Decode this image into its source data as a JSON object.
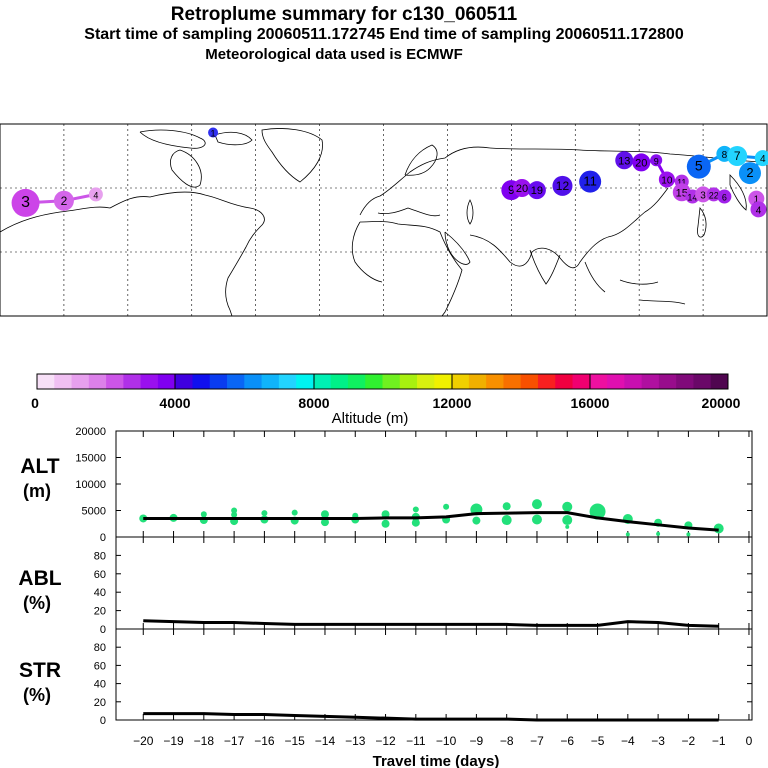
{
  "header": {
    "title": "Retroplume summary for c130_060511",
    "sampling": "Start time of sampling 20060511.172745     End time of sampling 20060511.172800",
    "met": "Meteorological data used is ECMWF"
  },
  "colors": {
    "alt_points": "#22e07a",
    "line": "#000000",
    "scale": [
      "#f7e0f7",
      "#f0c0f2",
      "#e7a0ee",
      "#dc80ea",
      "#cc55e8",
      "#b030e8",
      "#9a10ee",
      "#8000f0",
      "#3f00e0",
      "#1010ee",
      "#0a3cf0",
      "#0a66f5",
      "#0a90f8",
      "#10b4fa",
      "#22d4ff",
      "#00f4f0",
      "#00f0b4",
      "#00f088",
      "#10f060",
      "#30f030",
      "#70f020",
      "#a8f010",
      "#d8f010",
      "#f0f000",
      "#f0d000",
      "#f0b000",
      "#f89000",
      "#f87000",
      "#f85000",
      "#f82020",
      "#f00040",
      "#f00070",
      "#ee10a0",
      "#e010b0",
      "#c810b0",
      "#b010a0",
      "#980c8c",
      "#800a7a",
      "#6a0868",
      "#500650"
    ]
  },
  "map": {
    "clusters": [
      {
        "label": "3",
        "lon": -168,
        "lat": 53,
        "size": 14,
        "color": "#cc44e8"
      },
      {
        "label": "2",
        "lon": -150,
        "lat": 54,
        "size": 10,
        "color": "#d466ea"
      },
      {
        "label": "4",
        "lon": -135,
        "lat": 57,
        "size": 7,
        "color": "#e7a0ee"
      },
      {
        "label": "1",
        "lon": -80,
        "lat": 86,
        "size": 5,
        "color": "#3030f0"
      },
      {
        "label": "9",
        "lon": 60,
        "lat": 59,
        "size": 10,
        "color": "#8000f0"
      },
      {
        "label": "20",
        "lon": 65,
        "lat": 60,
        "size": 9,
        "color": "#9a10ee"
      },
      {
        "label": "19",
        "lon": 72,
        "lat": 59,
        "size": 9,
        "color": "#6a0cf0"
      },
      {
        "label": "12",
        "lon": 84,
        "lat": 61,
        "size": 10,
        "color": "#5010ea"
      },
      {
        "label": "11",
        "lon": 97,
        "lat": 63,
        "size": 11,
        "color": "#2020ea"
      },
      {
        "label": "13",
        "lon": 113,
        "lat": 73,
        "size": 9,
        "color": "#6010ea"
      },
      {
        "label": "20",
        "lon": 121,
        "lat": 72,
        "size": 9,
        "color": "#8000f0"
      },
      {
        "label": "9",
        "lon": 128,
        "lat": 73,
        "size": 6,
        "color": "#8810ee"
      },
      {
        "label": "10",
        "lon": 133,
        "lat": 64,
        "size": 8,
        "color": "#9a10ee"
      },
      {
        "label": "11",
        "lon": 140,
        "lat": 63,
        "size": 7,
        "color": "#b030e8"
      },
      {
        "label": "15",
        "lon": 140,
        "lat": 58,
        "size": 9,
        "color": "#c040e8"
      },
      {
        "label": "14",
        "lon": 145,
        "lat": 56,
        "size": 7,
        "color": "#b030e8"
      },
      {
        "label": "3",
        "lon": 150,
        "lat": 57,
        "size": 8,
        "color": "#cc55e8"
      },
      {
        "label": "22",
        "lon": 155,
        "lat": 57,
        "size": 7,
        "color": "#b030e8"
      },
      {
        "label": "6",
        "lon": 160,
        "lat": 56,
        "size": 7,
        "color": "#a020ea"
      },
      {
        "label": "5",
        "lon": 148,
        "lat": 70,
        "size": 12,
        "color": "#0a66f5"
      },
      {
        "label": "8",
        "lon": 160,
        "lat": 76,
        "size": 8,
        "color": "#10b4fa"
      },
      {
        "label": "7",
        "lon": 166,
        "lat": 75,
        "size": 10,
        "color": "#22d4ff"
      },
      {
        "label": "4",
        "lon": 178,
        "lat": 74,
        "size": 8,
        "color": "#22d4ff"
      },
      {
        "label": "2",
        "lon": 172,
        "lat": 67,
        "size": 11,
        "color": "#0a90f8"
      },
      {
        "label": "1",
        "lon": 175,
        "lat": 55,
        "size": 8,
        "color": "#cc55e8"
      },
      {
        "label": "4",
        "lon": 176,
        "lat": 50,
        "size": 8,
        "color": "#b030e8"
      }
    ]
  },
  "colorbar": {
    "labels": [
      "0",
      "4000",
      "8000",
      "12000",
      "16000",
      "20000"
    ],
    "title": "Altitude (m)"
  },
  "chart_data": [
    {
      "type": "line",
      "title": "ALT (m)",
      "panel_label": "ALT",
      "panel_unit": "(m)",
      "ylim": [
        0,
        20000
      ],
      "yticks": [
        "0",
        "5000",
        "10000",
        "15000",
        "20000"
      ],
      "x": [
        -20,
        -19,
        -18,
        -17,
        -16,
        -15,
        -14,
        -13,
        -12,
        -11,
        -10,
        -9,
        -8,
        -7,
        -6,
        -5,
        -4,
        -3,
        -2,
        -1
      ],
      "values": [
        3500,
        3500,
        3500,
        3500,
        3500,
        3500,
        3500,
        3500,
        3600,
        3600,
        3800,
        4400,
        4500,
        4600,
        4600,
        3600,
        2900,
        2300,
        1700,
        1300
      ],
      "scatter": [
        {
          "x": -20,
          "y": 3500,
          "r": 4
        },
        {
          "x": -19,
          "y": 3600,
          "r": 4
        },
        {
          "x": -18,
          "y": 3200,
          "r": 4
        },
        {
          "x": -18,
          "y": 4300,
          "r": 3
        },
        {
          "x": -17,
          "y": 3000,
          "r": 4
        },
        {
          "x": -17,
          "y": 4200,
          "r": 3
        },
        {
          "x": -17,
          "y": 5000,
          "r": 3
        },
        {
          "x": -16,
          "y": 3300,
          "r": 4
        },
        {
          "x": -16,
          "y": 4500,
          "r": 3
        },
        {
          "x": -15,
          "y": 3100,
          "r": 4
        },
        {
          "x": -15,
          "y": 4600,
          "r": 3
        },
        {
          "x": -14,
          "y": 2800,
          "r": 4
        },
        {
          "x": -14,
          "y": 4300,
          "r": 4
        },
        {
          "x": -13,
          "y": 3300,
          "r": 4
        },
        {
          "x": -13,
          "y": 4000,
          "r": 3
        },
        {
          "x": -12,
          "y": 2500,
          "r": 4
        },
        {
          "x": -12,
          "y": 4300,
          "r": 4
        },
        {
          "x": -11,
          "y": 2700,
          "r": 4
        },
        {
          "x": -11,
          "y": 3800,
          "r": 4
        },
        {
          "x": -11,
          "y": 5200,
          "r": 3
        },
        {
          "x": -10,
          "y": 3300,
          "r": 4
        },
        {
          "x": -10,
          "y": 5700,
          "r": 3
        },
        {
          "x": -9,
          "y": 3100,
          "r": 4
        },
        {
          "x": -9,
          "y": 5200,
          "r": 6
        },
        {
          "x": -8,
          "y": 3200,
          "r": 5
        },
        {
          "x": -8,
          "y": 5800,
          "r": 4
        },
        {
          "x": -7,
          "y": 3300,
          "r": 5
        },
        {
          "x": -7,
          "y": 6200,
          "r": 5
        },
        {
          "x": -6,
          "y": 1900,
          "r": 2
        },
        {
          "x": -6,
          "y": 3200,
          "r": 5
        },
        {
          "x": -6,
          "y": 5700,
          "r": 5
        },
        {
          "x": -5,
          "y": 4800,
          "r": 8
        },
        {
          "x": -4,
          "y": 500,
          "r": 2
        },
        {
          "x": -4,
          "y": 3400,
          "r": 5
        },
        {
          "x": -3,
          "y": 600,
          "r": 2
        },
        {
          "x": -3,
          "y": 2700,
          "r": 4
        },
        {
          "x": -2,
          "y": 500,
          "r": 2
        },
        {
          "x": -2,
          "y": 2200,
          "r": 4
        },
        {
          "x": -1,
          "y": 1600,
          "r": 5
        }
      ]
    },
    {
      "type": "line",
      "title": "ABL (%)",
      "panel_label": "ABL",
      "panel_unit": "(%)",
      "ylim": [
        0,
        100
      ],
      "yticks": [
        "0",
        "20",
        "40",
        "60",
        "80"
      ],
      "x": [
        -20,
        -19,
        -18,
        -17,
        -16,
        -15,
        -14,
        -13,
        -12,
        -11,
        -10,
        -9,
        -8,
        -7,
        -6,
        -5,
        -4,
        -3,
        -2,
        -1
      ],
      "values": [
        9,
        8,
        7,
        7,
        6,
        5,
        5,
        5,
        5,
        5,
        5,
        5,
        5,
        4,
        4,
        4,
        8,
        7,
        4,
        3
      ]
    },
    {
      "type": "line",
      "title": "STR (%)",
      "panel_label": "STR",
      "panel_unit": "(%)",
      "ylim": [
        0,
        100
      ],
      "yticks": [
        "0",
        "20",
        "40",
        "60",
        "80"
      ],
      "x": [
        -20,
        -19,
        -18,
        -17,
        -16,
        -15,
        -14,
        -13,
        -12,
        -11,
        -10,
        -9,
        -8,
        -7,
        -6,
        -5,
        -4,
        -3,
        -2,
        -1
      ],
      "values": [
        7,
        7,
        7,
        6,
        6,
        5,
        4,
        3,
        2,
        1,
        1,
        1,
        1,
        0,
        0,
        0,
        0,
        0,
        0,
        0
      ]
    }
  ],
  "xaxis": {
    "label": "Travel time (days)",
    "ticks": [
      "−20",
      "−19",
      "−18",
      "−17",
      "−16",
      "−15",
      "−14",
      "−13",
      "−12",
      "−11",
      "−10",
      "−9",
      "−8",
      "−7",
      "−6",
      "−5",
      "−4",
      "−3",
      "−2",
      "−1",
      "0"
    ]
  }
}
